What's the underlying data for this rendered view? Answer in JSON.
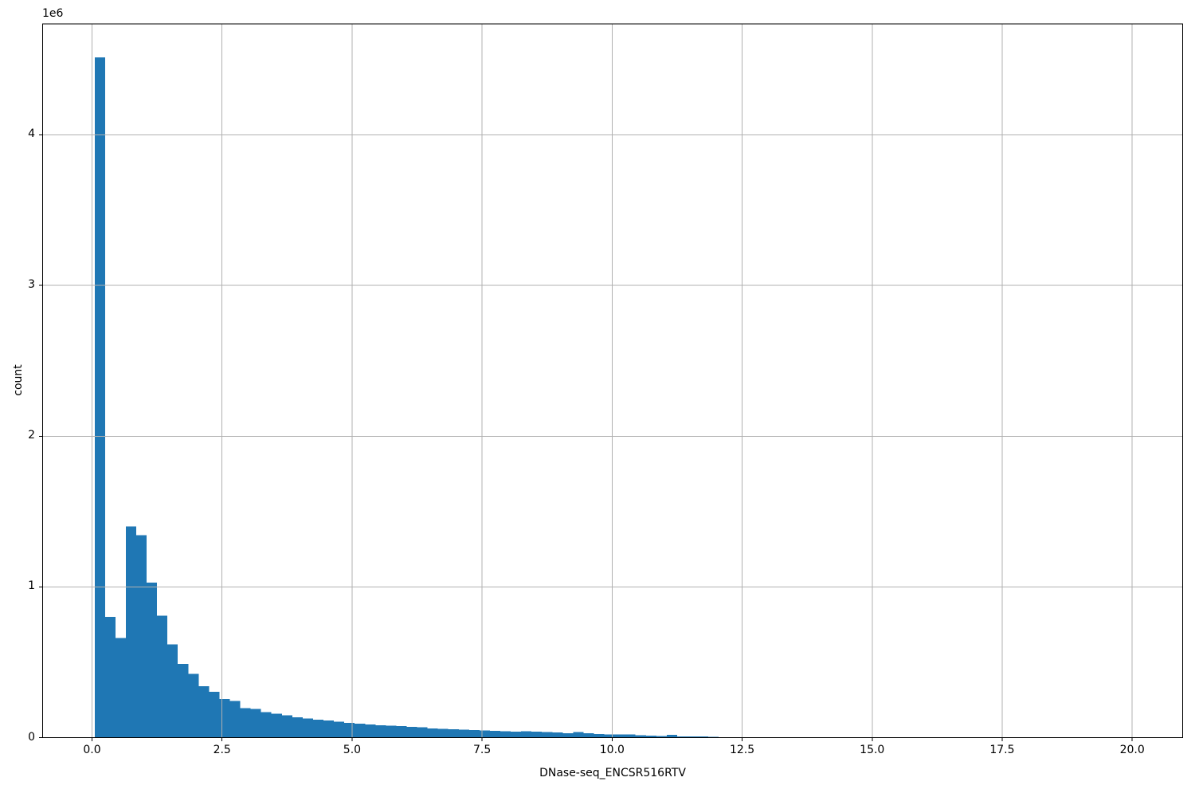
{
  "chart_data": {
    "type": "bar",
    "subtype": "histogram",
    "title": "",
    "xlabel": "DNase-seq_ENCSR516RTV",
    "ylabel": "count",
    "y_offset_label": "1e6",
    "bar_color": "#1f77b4",
    "grid_color": "#b0b0b0",
    "axis_color": "#000000",
    "background_color": "#ffffff",
    "grid": true,
    "legend": "none",
    "xlim": [
      -0.95,
      20.97
    ],
    "ylim": [
      0,
      4735000
    ],
    "xticks": {
      "values": [
        0,
        2.5,
        5,
        7.5,
        10,
        12.5,
        15,
        17.5,
        20
      ],
      "labels": [
        "0.0",
        "2.5",
        "5.0",
        "7.5",
        "10.0",
        "12.5",
        "15.0",
        "17.5",
        "20.0"
      ]
    },
    "yticks": {
      "values": [
        0,
        1000000,
        2000000,
        3000000,
        4000000
      ],
      "labels": [
        "0",
        "1",
        "2",
        "3",
        "4"
      ]
    },
    "histogram": {
      "bin_start": 0.05,
      "bin_width": 0.2,
      "counts": [
        4513000,
        800000,
        662000,
        1400000,
        1344000,
        1028000,
        810000,
        618000,
        490000,
        423000,
        340000,
        305000,
        256000,
        242000,
        195000,
        190000,
        168000,
        158000,
        148000,
        136000,
        128000,
        118000,
        113000,
        106000,
        99000,
        92000,
        86000,
        81000,
        80000,
        77000,
        71000,
        68000,
        62000,
        59000,
        55000,
        54000,
        50000,
        48000,
        45000,
        43000,
        40000,
        41000,
        39000,
        36000,
        34000,
        30000,
        37000,
        29000,
        24000,
        21000,
        20000,
        22000,
        16000,
        12000,
        11000,
        18000,
        9000,
        8000,
        7000,
        6000
      ]
    }
  }
}
